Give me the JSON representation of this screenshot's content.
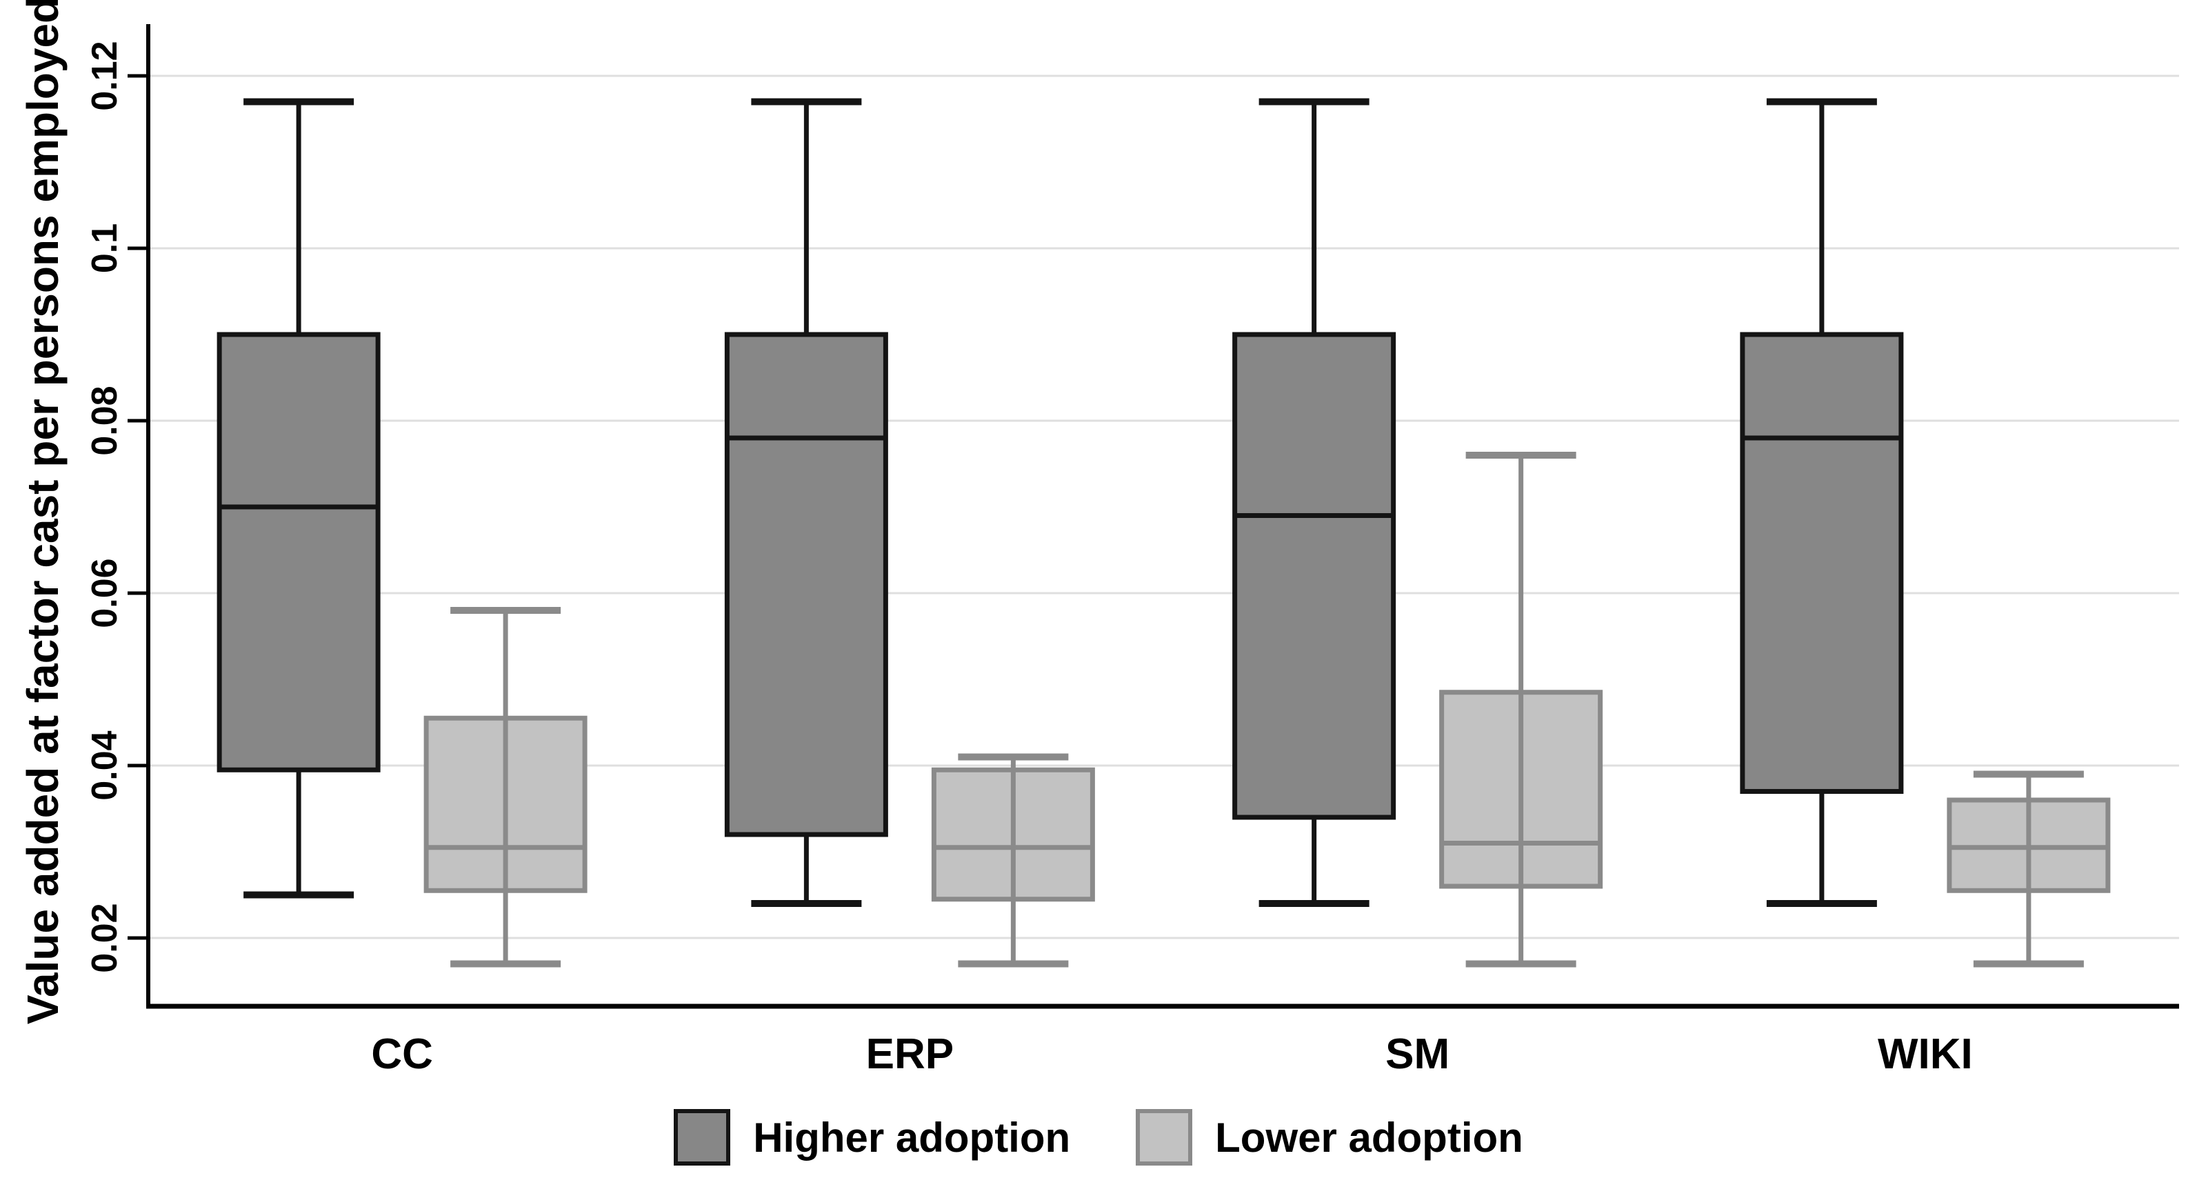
{
  "chart_data": {
    "type": "boxplot",
    "title": "",
    "ylabel": "Value added at factor cast per persons employed",
    "xlabel": "",
    "categories": [
      "CC",
      "ERP",
      "SM",
      "WIKI"
    ],
    "yticks": [
      0.02,
      0.04,
      0.06,
      0.08,
      0.1,
      0.12
    ],
    "ylim": [
      0.012,
      0.1265
    ],
    "grid": "horizontal",
    "legend_position": "bottom-center",
    "colors": {
      "higher_fill": "#878787",
      "higher_stroke": "#141414",
      "lower_fill": "#c2c2c2",
      "lower_stroke": "#8a8a8a",
      "gridline": "#dfdfdf",
      "axis": "#000000"
    },
    "series": [
      {
        "name": "Higher adoption",
        "fill": "#878787",
        "stroke": "#141414",
        "boxes": [
          {
            "category": "CC",
            "whisker_low": 0.025,
            "q1": 0.0395,
            "median": 0.07,
            "q3": 0.09,
            "whisker_high": 0.117
          },
          {
            "category": "ERP",
            "whisker_low": 0.024,
            "q1": 0.032,
            "median": 0.078,
            "q3": 0.09,
            "whisker_high": 0.117
          },
          {
            "category": "SM",
            "whisker_low": 0.024,
            "q1": 0.034,
            "median": 0.069,
            "q3": 0.09,
            "whisker_high": 0.117
          },
          {
            "category": "WIKI",
            "whisker_low": 0.024,
            "q1": 0.037,
            "median": 0.078,
            "q3": 0.09,
            "whisker_high": 0.117
          }
        ]
      },
      {
        "name": "Lower adoption",
        "fill": "#c2c2c2",
        "stroke": "#8a8a8a",
        "boxes": [
          {
            "category": "CC",
            "whisker_low": 0.017,
            "q1": 0.0255,
            "median": 0.0305,
            "q3": 0.0455,
            "whisker_high": 0.058
          },
          {
            "category": "ERP",
            "whisker_low": 0.017,
            "q1": 0.0245,
            "median": 0.0305,
            "q3": 0.0395,
            "whisker_high": 0.041
          },
          {
            "category": "SM",
            "whisker_low": 0.017,
            "q1": 0.026,
            "median": 0.031,
            "q3": 0.0485,
            "whisker_high": 0.076
          },
          {
            "category": "WIKI",
            "whisker_low": 0.017,
            "q1": 0.0255,
            "median": 0.0305,
            "q3": 0.036,
            "whisker_high": 0.039
          }
        ]
      }
    ]
  }
}
